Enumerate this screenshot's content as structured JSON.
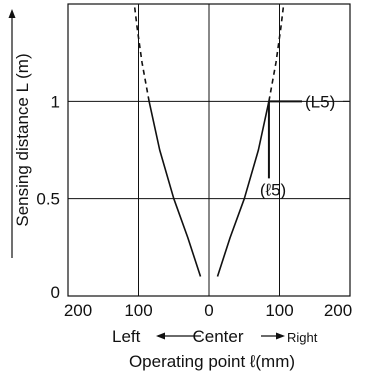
{
  "chart_data": {
    "type": "line",
    "title": "",
    "xlabel": "Operating point ℓ(mm)",
    "ylabel": "Sensing distance L (m)",
    "x_direction_labels": {
      "left": "Left",
      "center": "Center",
      "right": "Right"
    },
    "x_ticks": [
      "200",
      "100",
      "0",
      "100",
      "200"
    ],
    "y_ticks": [
      "0",
      "0.5",
      "1"
    ],
    "xlim": [
      -200,
      200
    ],
    "ylim": [
      0,
      1.5
    ],
    "grid": true,
    "series": [
      {
        "side": "right",
        "style": "solid",
        "x": [
          12,
          30,
          50,
          70,
          85
        ],
        "y": [
          0.1,
          0.3,
          0.5,
          0.75,
          1.0
        ]
      },
      {
        "side": "right",
        "style": "dashed",
        "x": [
          85,
          95,
          102,
          106
        ],
        "y": [
          1.0,
          1.2,
          1.38,
          1.5
        ]
      },
      {
        "side": "left",
        "style": "solid",
        "x": [
          -12,
          -30,
          -50,
          -70,
          -85
        ],
        "y": [
          0.1,
          0.3,
          0.5,
          0.75,
          1.0
        ]
      },
      {
        "side": "left",
        "style": "dashed",
        "x": [
          -85,
          -95,
          -102,
          -106
        ],
        "y": [
          1.0,
          1.2,
          1.38,
          1.5
        ]
      }
    ],
    "annotations": [
      {
        "text": "(L5)",
        "x": 85,
        "y": 1.0
      },
      {
        "text": "(ℓ5)",
        "x": 85,
        "y": 1.0
      }
    ]
  }
}
